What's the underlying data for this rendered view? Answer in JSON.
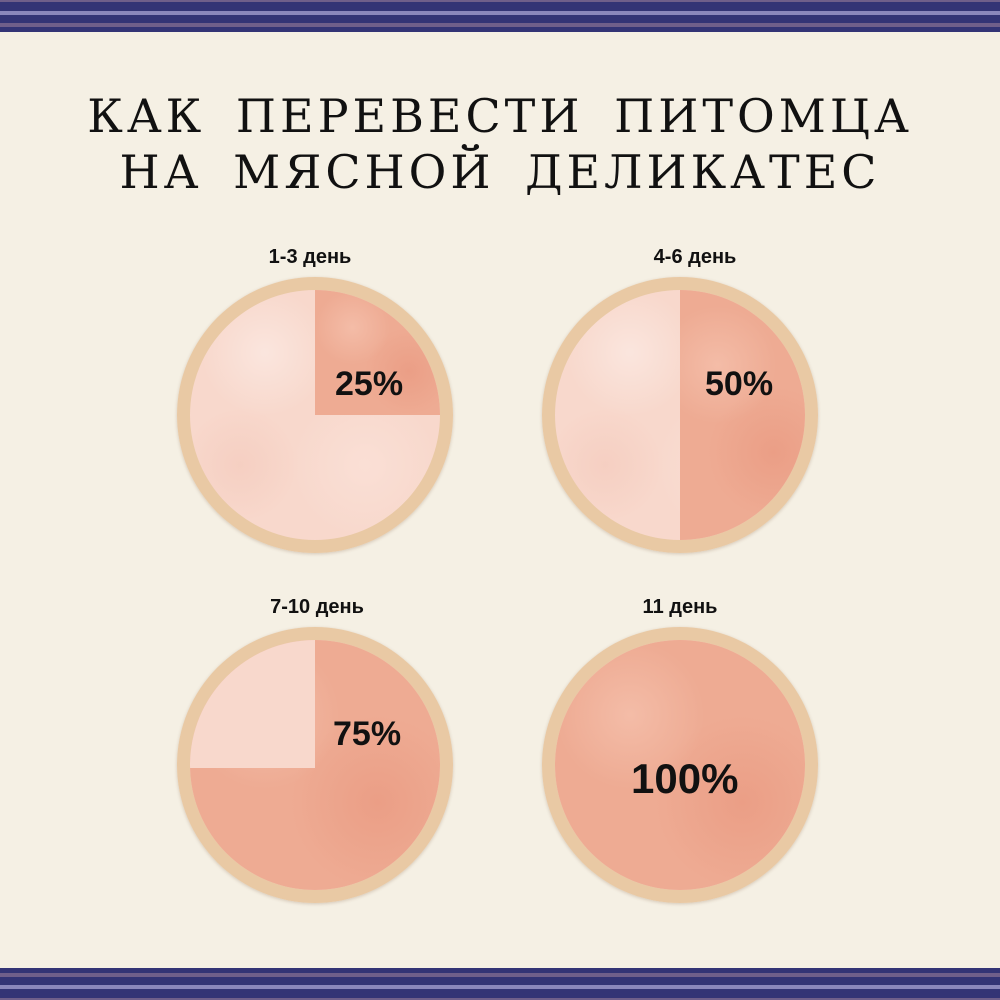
{
  "title": {
    "line1": "КАК ПЕРЕВЕСТИ ПИТОМЦА",
    "line2": "НА МЯСНОЙ ДЕЛИКАТЕС"
  },
  "stages": [
    {
      "label": "1-3 день",
      "percent": "25%",
      "fraction": 0.25
    },
    {
      "label": "4-6 день",
      "percent": "50%",
      "fraction": 0.5
    },
    {
      "label": "7-10 день",
      "percent": "75%",
      "fraction": 0.75
    },
    {
      "label": "11 день",
      "percent": "100%",
      "fraction": 1
    }
  ],
  "colors": {
    "stripe_navy": "#333475",
    "background": "#f5f0e4",
    "new_food": "#eeab93",
    "old_food": "#f8d8cc",
    "rim": "#b7805a"
  }
}
